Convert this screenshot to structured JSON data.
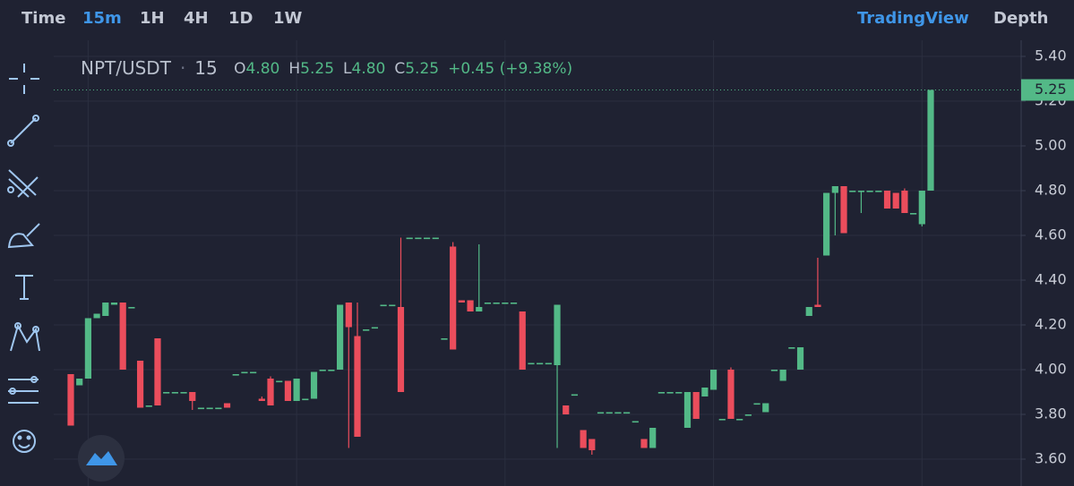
{
  "nav": {
    "intervals": [
      "Time",
      "15m",
      "1H",
      "4H",
      "1D",
      "1W"
    ],
    "active": 1,
    "views": [
      "TradingView",
      "Depth"
    ],
    "active_view": 0
  },
  "chart_data": {
    "type": "candlestick",
    "title": {
      "symbol": "NPT/USDT",
      "interval": "15",
      "fields": [
        {
          "label": "O",
          "value": "4.80"
        },
        {
          "label": "H",
          "value": "5.25"
        },
        {
          "label": "L",
          "value": "4.80"
        },
        {
          "label": "C",
          "value": "5.25"
        }
      ],
      "change": "+0.45 (+9.38%)"
    },
    "up_color": "#53b987",
    "down_color": "#eb4d5c",
    "ylim": [
      3.48,
      5.46
    ],
    "yticks": [
      {
        "value": 3.6,
        "label": "3.60"
      },
      {
        "value": 3.8,
        "label": "3.80"
      },
      {
        "value": 4.0,
        "label": "4.00"
      },
      {
        "value": 4.2,
        "label": "4.20"
      },
      {
        "value": 4.4,
        "label": "4.40"
      },
      {
        "value": 4.6,
        "label": "4.60"
      },
      {
        "value": 4.8,
        "label": "4.80"
      },
      {
        "value": 5.0,
        "label": "5.00"
      },
      {
        "value": 5.2,
        "label": "5.20"
      },
      {
        "value": 5.4,
        "label": "5.40"
      }
    ],
    "grid": true,
    "last_price": {
      "value": 5.25,
      "label": "5.25"
    },
    "ohlc": [
      [
        3.98,
        3.98,
        3.75,
        3.75
      ],
      [
        3.93,
        3.96,
        3.93,
        3.96
      ],
      [
        3.96,
        4.23,
        3.96,
        4.23
      ],
      [
        4.23,
        4.25,
        4.23,
        4.25
      ],
      [
        4.24,
        4.3,
        4.24,
        4.3
      ],
      [
        4.29,
        4.3,
        4.29,
        4.3
      ],
      [
        4.3,
        4.3,
        4.0,
        4.0
      ],
      [
        4.28,
        4.28,
        4.28,
        4.28
      ],
      [
        4.04,
        4.04,
        3.83,
        3.83
      ],
      [
        3.84,
        3.84,
        3.84,
        3.84
      ],
      [
        4.14,
        4.14,
        3.84,
        3.84
      ],
      [
        3.9,
        3.9,
        3.9,
        3.9
      ],
      [
        3.9,
        3.9,
        3.9,
        3.9
      ],
      [
        3.9,
        3.9,
        3.9,
        3.9
      ],
      [
        3.9,
        3.9,
        3.82,
        3.86
      ],
      [
        3.83,
        3.83,
        3.83,
        3.83
      ],
      [
        3.83,
        3.83,
        3.83,
        3.83
      ],
      [
        3.83,
        3.83,
        3.83,
        3.83
      ],
      [
        3.85,
        3.85,
        3.83,
        3.83
      ],
      [
        3.98,
        3.98,
        3.98,
        3.98
      ],
      [
        3.99,
        3.99,
        3.99,
        3.99
      ],
      [
        3.99,
        3.99,
        3.99,
        3.99
      ],
      [
        3.87,
        3.88,
        3.86,
        3.86
      ],
      [
        3.96,
        3.97,
        3.84,
        3.84
      ],
      [
        3.95,
        3.95,
        3.95,
        3.95
      ],
      [
        3.95,
        3.95,
        3.86,
        3.86
      ],
      [
        3.86,
        3.96,
        3.86,
        3.96
      ],
      [
        3.87,
        3.87,
        3.87,
        3.87
      ],
      [
        3.87,
        3.99,
        3.87,
        3.99
      ],
      [
        4.0,
        4.0,
        4.0,
        4.0
      ],
      [
        4.0,
        4.0,
        4.0,
        4.0
      ],
      [
        4.0,
        4.29,
        4.0,
        4.29
      ],
      [
        4.3,
        4.3,
        3.65,
        4.19
      ],
      [
        4.15,
        4.3,
        3.7,
        3.7
      ],
      [
        4.18,
        4.18,
        4.18,
        4.18
      ],
      [
        4.19,
        4.19,
        4.19,
        4.19
      ],
      [
        4.29,
        4.29,
        4.29,
        4.29
      ],
      [
        4.29,
        4.29,
        4.29,
        4.29
      ],
      [
        4.28,
        4.59,
        3.9,
        3.9
      ],
      [
        4.59,
        4.59,
        4.59,
        4.59
      ],
      [
        4.59,
        4.59,
        4.59,
        4.59
      ],
      [
        4.59,
        4.59,
        4.59,
        4.59
      ],
      [
        4.59,
        4.59,
        4.59,
        4.59
      ],
      [
        4.14,
        4.14,
        4.14,
        4.14
      ],
      [
        4.55,
        4.57,
        4.09,
        4.09
      ],
      [
        4.31,
        4.31,
        4.3,
        4.3
      ],
      [
        4.31,
        4.31,
        4.26,
        4.26
      ],
      [
        4.26,
        4.56,
        4.26,
        4.28
      ],
      [
        4.3,
        4.3,
        4.3,
        4.3
      ],
      [
        4.3,
        4.3,
        4.3,
        4.3
      ],
      [
        4.3,
        4.3,
        4.3,
        4.3
      ],
      [
        4.3,
        4.3,
        4.3,
        4.3
      ],
      [
        4.26,
        4.26,
        4.0,
        4.0
      ],
      [
        4.03,
        4.03,
        4.03,
        4.03
      ],
      [
        4.03,
        4.03,
        4.03,
        4.03
      ],
      [
        4.03,
        4.03,
        4.03,
        4.03
      ],
      [
        4.02,
        4.29,
        3.65,
        4.29
      ],
      [
        3.84,
        3.84,
        3.8,
        3.8
      ],
      [
        3.89,
        3.89,
        3.89,
        3.89
      ],
      [
        3.73,
        3.73,
        3.65,
        3.65
      ],
      [
        3.69,
        3.69,
        3.62,
        3.64
      ],
      [
        3.81,
        3.81,
        3.81,
        3.81
      ],
      [
        3.81,
        3.81,
        3.81,
        3.81
      ],
      [
        3.81,
        3.81,
        3.81,
        3.81
      ],
      [
        3.81,
        3.81,
        3.81,
        3.81
      ],
      [
        3.77,
        3.77,
        3.77,
        3.77
      ],
      [
        3.69,
        3.69,
        3.65,
        3.65
      ],
      [
        3.65,
        3.74,
        3.65,
        3.74
      ],
      [
        3.9,
        3.9,
        3.9,
        3.9
      ],
      [
        3.9,
        3.9,
        3.9,
        3.9
      ],
      [
        3.9,
        3.9,
        3.9,
        3.9
      ],
      [
        3.74,
        3.9,
        3.74,
        3.9
      ],
      [
        3.9,
        3.9,
        3.78,
        3.78
      ],
      [
        3.88,
        3.92,
        3.88,
        3.92
      ],
      [
        3.91,
        4.0,
        3.91,
        4.0
      ],
      [
        3.78,
        3.78,
        3.78,
        3.78
      ],
      [
        4.0,
        4.01,
        3.78,
        3.78
      ],
      [
        3.78,
        3.78,
        3.78,
        3.78
      ],
      [
        3.8,
        3.8,
        3.8,
        3.8
      ],
      [
        3.85,
        3.85,
        3.85,
        3.85
      ],
      [
        3.81,
        3.85,
        3.81,
        3.85
      ],
      [
        4.0,
        4.0,
        4.0,
        4.0
      ],
      [
        3.95,
        4.0,
        3.95,
        4.0
      ],
      [
        4.1,
        4.1,
        4.1,
        4.1
      ],
      [
        4.0,
        4.1,
        4.0,
        4.1
      ],
      [
        4.24,
        4.28,
        4.24,
        4.28
      ],
      [
        4.29,
        4.5,
        4.28,
        4.28
      ],
      [
        4.51,
        4.79,
        4.51,
        4.79
      ],
      [
        4.79,
        4.82,
        4.6,
        4.82
      ],
      [
        4.82,
        4.82,
        4.61,
        4.61
      ],
      [
        4.8,
        4.8,
        4.8,
        4.8
      ],
      [
        4.8,
        4.8,
        4.7,
        4.8
      ],
      [
        4.8,
        4.8,
        4.8,
        4.8
      ],
      [
        4.8,
        4.8,
        4.8,
        4.8
      ],
      [
        4.8,
        4.8,
        4.72,
        4.72
      ],
      [
        4.79,
        4.79,
        4.72,
        4.72
      ],
      [
        4.8,
        4.81,
        4.7,
        4.7
      ],
      [
        4.7,
        4.7,
        4.7,
        4.7
      ],
      [
        4.65,
        4.8,
        4.64,
        4.8
      ],
      [
        4.8,
        5.25,
        4.8,
        5.25
      ]
    ]
  }
}
